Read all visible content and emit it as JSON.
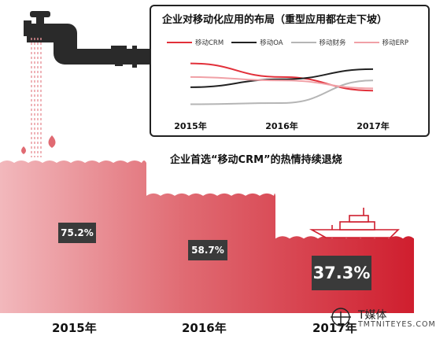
{
  "colors": {
    "water_light": "#e8939a",
    "water_mid": "#de5e66",
    "water_dark": "#cf1e2e",
    "pipe": "#2a2a2a",
    "crm_line": "#e2303a",
    "oa_line": "#222222",
    "finance_line": "#b5b5b5",
    "erp_line": "#f0a0a6"
  },
  "icons": [
    "faucet-icon",
    "water-drop-icon",
    "ship-icon",
    "media-logo-icon"
  ],
  "chart_data": [
    {
      "type": "line",
      "title": "企业对移动化应用的布局（重型应用都在走下坡）",
      "x": [
        "2015年",
        "2016年",
        "2017年"
      ],
      "series": [
        {
          "name": "移动CRM",
          "values": [
            8.8,
            6.4,
            4.0
          ]
        },
        {
          "name": "移动OA",
          "values": [
            4.6,
            6.0,
            7.8
          ]
        },
        {
          "name": "移动财务",
          "values": [
            1.6,
            1.8,
            5.8
          ]
        },
        {
          "name": "移动ERP",
          "values": [
            6.4,
            5.8,
            4.4
          ]
        }
      ],
      "ylim": [
        0,
        10
      ],
      "grid": false,
      "legend": "top"
    },
    {
      "type": "bar",
      "title": "企业首选“移动CRM”的热情持续退烧",
      "categories": [
        "2015年",
        "2016年",
        "2017年"
      ],
      "values": [
        75.2,
        58.7,
        37.3
      ],
      "labels": [
        "75.2%",
        "58.7%",
        "37.3%"
      ],
      "ylim": [
        0,
        100
      ]
    }
  ],
  "watermark": {
    "cn": "T媒体",
    "en": "TMTNITEYES.COM"
  }
}
